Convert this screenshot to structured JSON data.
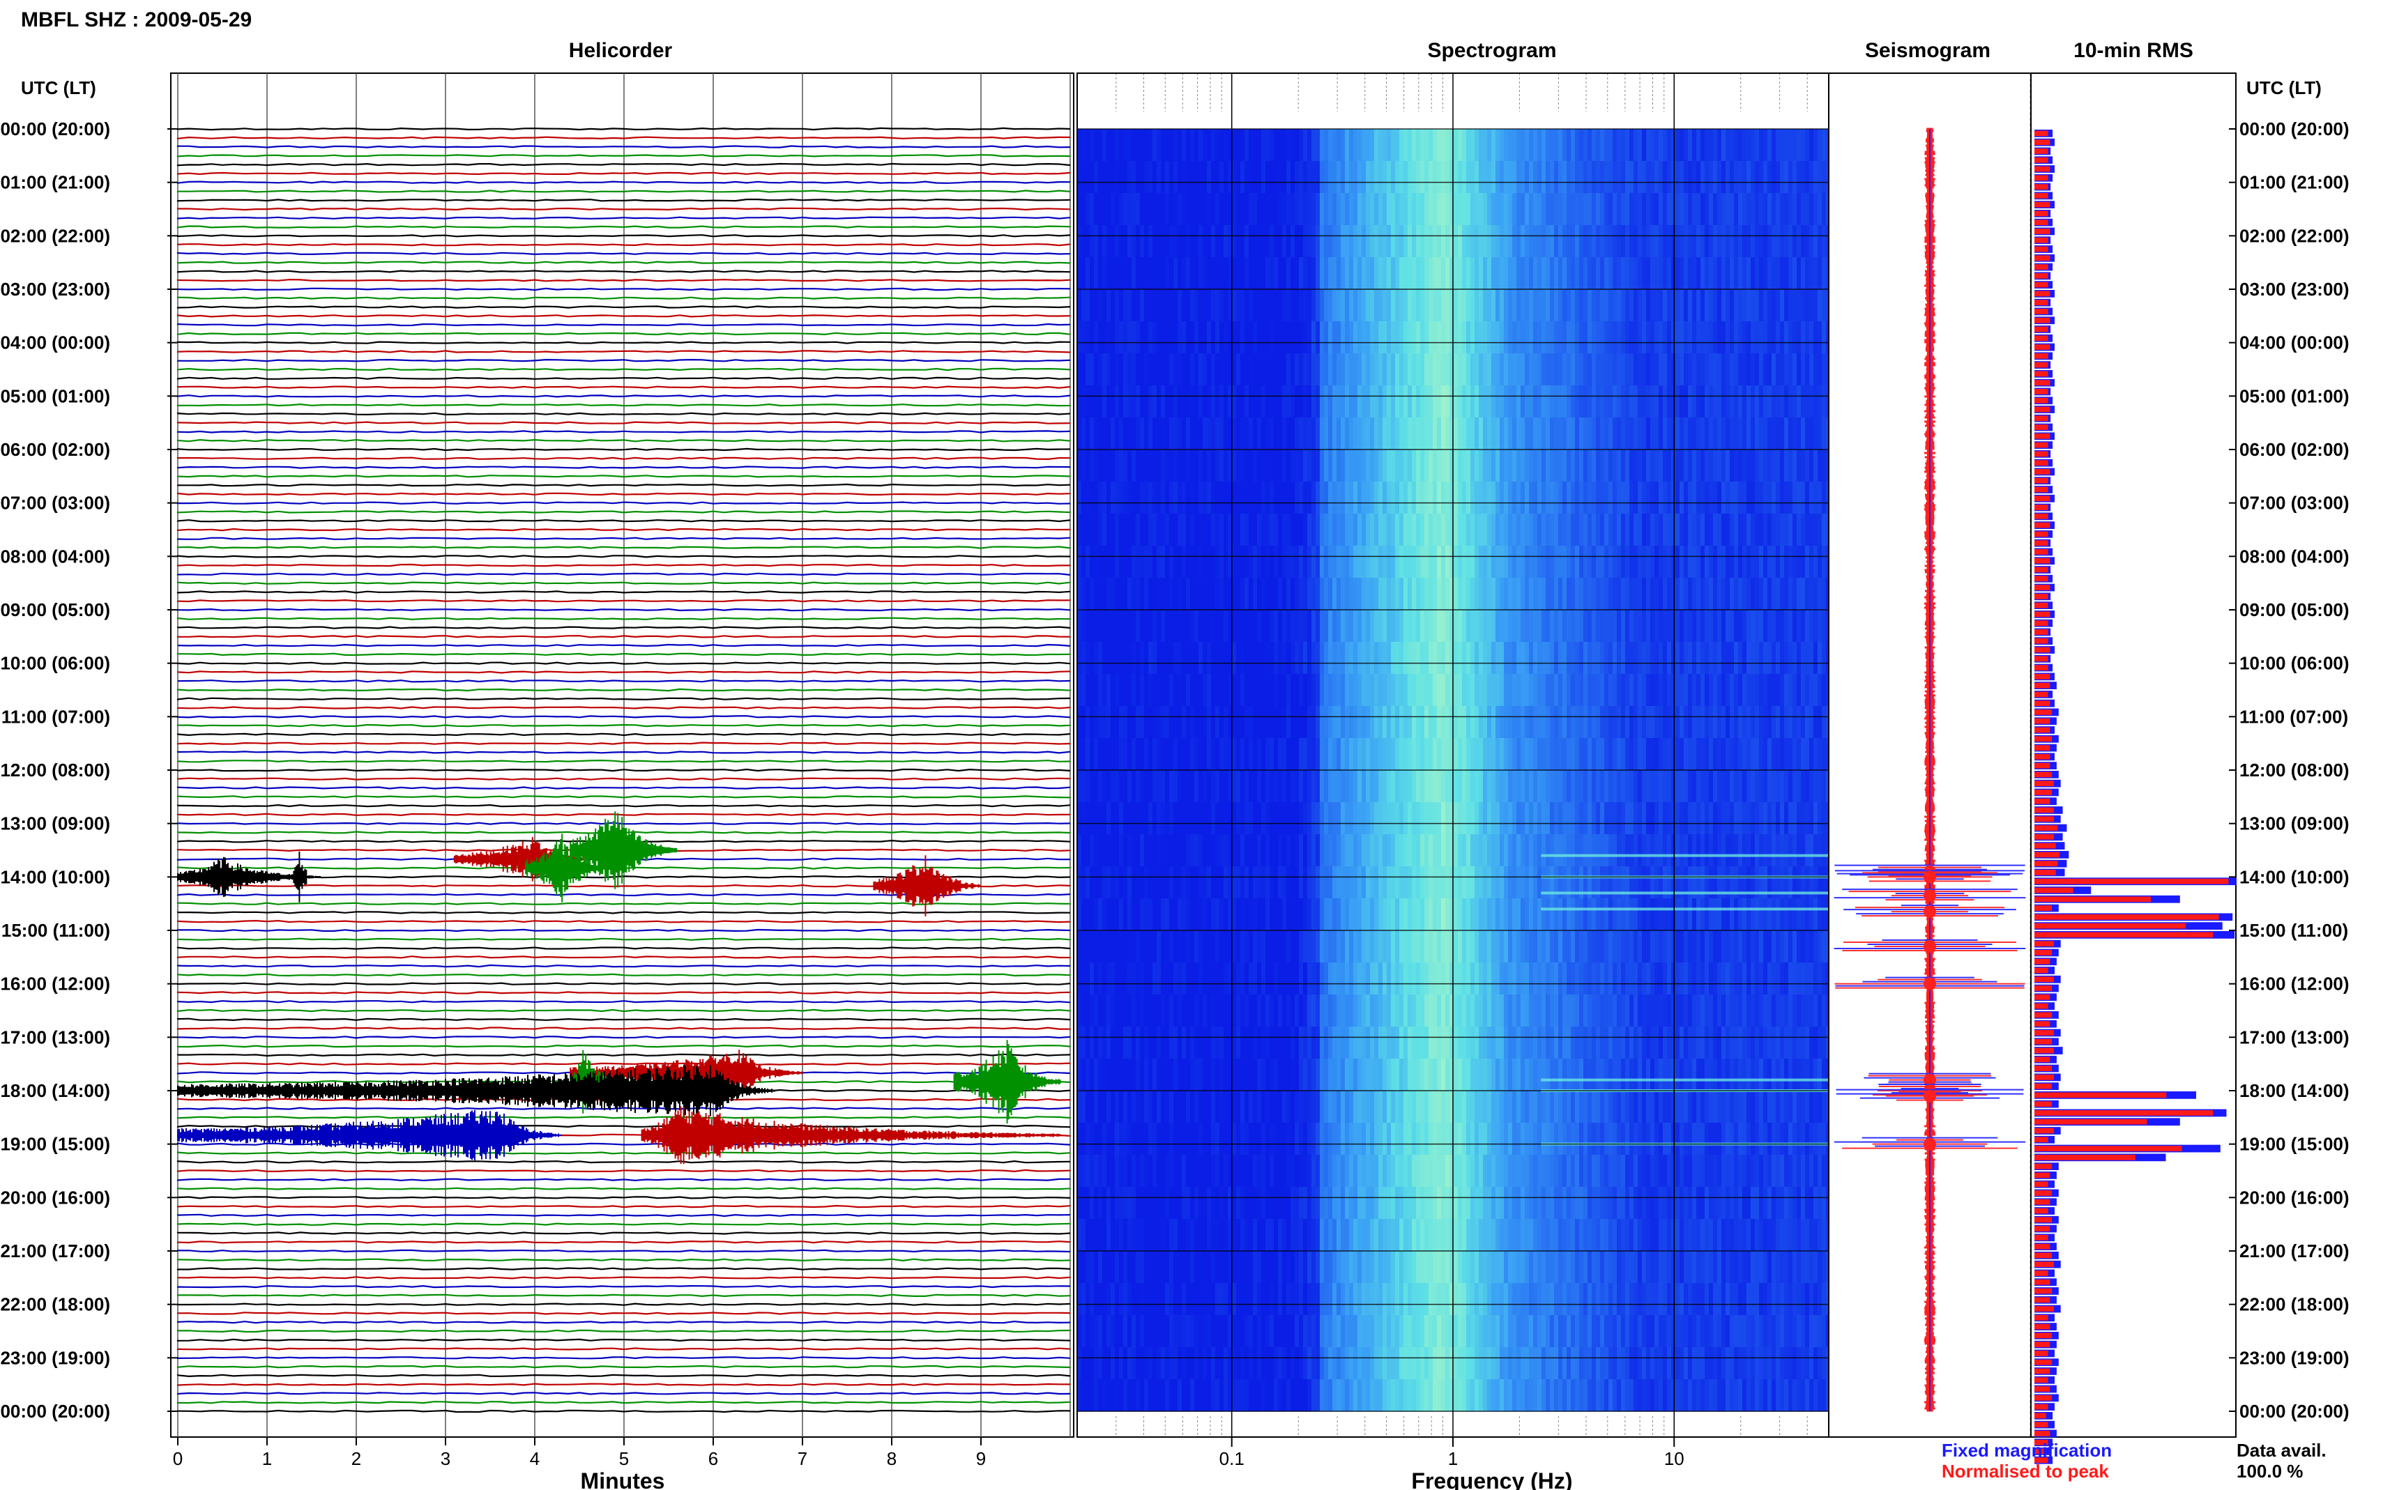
{
  "header": {
    "station_title": "MBFL SHZ : 2009-05-29"
  },
  "panels": {
    "helicorder_title": "Helicorder",
    "spectrogram_title": "Spectrogram",
    "seismogram_title": "Seismogram",
    "rms_title": "10-min RMS"
  },
  "axis": {
    "time_header_left": "UTC (LT)",
    "time_header_right": "UTC (LT)",
    "helicorder_xlabel": "Minutes",
    "spectrogram_xlabel": "Frequency (Hz)"
  },
  "legend": {
    "fixed_label": "Fixed magnification",
    "normalised_label": "Normalised to peak",
    "fixed_color": "#1a1aff",
    "normalised_color": "#ff1a1a"
  },
  "availability": {
    "label": "Data avail.",
    "value": "100.0 %"
  },
  "chart_data": [
    {
      "type": "line",
      "name": "helicorder",
      "x_range_minutes": [
        0,
        10
      ],
      "x_ticks": [
        "0",
        "1",
        "2",
        "3",
        "4",
        "5",
        "6",
        "7",
        "8",
        "9"
      ],
      "time_labels": [
        "00:00 (20:00)",
        "01:00 (21:00)",
        "02:00 (22:00)",
        "03:00 (23:00)",
        "04:00 (00:00)",
        "05:00 (01:00)",
        "06:00 (02:00)",
        "07:00 (03:00)",
        "08:00 (04:00)",
        "09:00 (05:00)",
        "10:00 (06:00)",
        "11:00 (07:00)",
        "12:00 (08:00)",
        "13:00 (09:00)",
        "14:00 (10:00)",
        "15:00 (11:00)",
        "16:00 (12:00)",
        "17:00 (13:00)",
        "18:00 (14:00)",
        "19:00 (15:00)",
        "20:00 (16:00)",
        "21:00 (17:00)",
        "22:00 (18:00)",
        "23:00 (19:00)",
        "00:00 (20:00)"
      ],
      "trace_colors": [
        "#000000",
        "#c00000",
        "#0000c0",
        "#009000"
      ],
      "traces_per_hour": 6,
      "events": [
        {
          "row": 84,
          "start_min": 0.0,
          "peak_min": 0.5,
          "end_min": 1.6,
          "amp": 0.9,
          "color": "#000000"
        },
        {
          "row": 84,
          "start_min": 1.3,
          "peak_min": 1.35,
          "end_min": 1.45,
          "amp": 1.4,
          "color": "#000000"
        },
        {
          "row": 82,
          "start_min": 3.1,
          "peak_min": 4.0,
          "end_min": 4.6,
          "amp": 1.0,
          "color": "#c00000"
        },
        {
          "row": 81,
          "start_min": 4.4,
          "peak_min": 4.9,
          "end_min": 5.6,
          "amp": 2.0,
          "color": "#009000"
        },
        {
          "row": 83,
          "start_min": 3.9,
          "peak_min": 4.3,
          "end_min": 4.9,
          "amp": 1.5,
          "color": "#009000"
        },
        {
          "row": 85,
          "start_min": 7.8,
          "peak_min": 8.4,
          "end_min": 9.0,
          "amp": 1.4,
          "color": "#c00000"
        },
        {
          "row": 106,
          "start_min": 4.4,
          "peak_min": 6.3,
          "end_min": 7.0,
          "amp": 1.0,
          "color": "#c00000"
        },
        {
          "row": 107,
          "start_min": 4.4,
          "peak_min": 4.55,
          "end_min": 5.0,
          "amp": 1.5,
          "color": "#009000"
        },
        {
          "row": 107,
          "start_min": 8.7,
          "peak_min": 9.3,
          "end_min": 9.9,
          "amp": 1.8,
          "color": "#009000"
        },
        {
          "row": 108,
          "start_min": 0.0,
          "peak_min": 6.0,
          "end_min": 6.7,
          "amp": 1.2,
          "color": "#000000"
        },
        {
          "row": 113,
          "start_min": 0.0,
          "peak_min": 3.6,
          "end_min": 4.3,
          "amp": 1.2,
          "color": "#0000c0"
        },
        {
          "row": 113,
          "start_min": 5.2,
          "peak_min": 5.6,
          "end_min": 9.9,
          "amp": 1.3,
          "color": "#c00000"
        }
      ]
    },
    {
      "type": "heatmap",
      "name": "spectrogram",
      "x_scale": "log",
      "x_range_hz": [
        0.02,
        50
      ],
      "x_ticks": [
        "0.1",
        "1",
        "10"
      ],
      "x_tick_values": [
        0.1,
        1,
        10
      ],
      "colormap": [
        "#0a1ee6",
        "#1f5cf0",
        "#3aa0f5",
        "#5ee0e6",
        "#a8f5c8"
      ],
      "dominant_band_hz": [
        0.25,
        1.8
      ],
      "peak_hz": 0.9,
      "bright_streaks_hours": [
        13.6,
        14.0,
        14.3,
        14.6,
        17.8,
        18.0,
        19.0
      ]
    },
    {
      "type": "line",
      "name": "seismogram",
      "bursts_hours": [
        13.9,
        14.0,
        14.35,
        14.65,
        15.3,
        16.0,
        17.8,
        18.0,
        18.1,
        19.0
      ]
    },
    {
      "type": "bar",
      "name": "10-min RMS",
      "series": [
        {
          "name": "Fixed magnification"
        },
        {
          "name": "Normalised to peak"
        }
      ],
      "bins_per_hour": 6,
      "baseline_values": [
        0.09,
        0.1,
        0.08,
        0.09,
        0.1,
        0.09,
        0.08,
        0.09,
        0.1,
        0.08,
        0.09,
        0.1,
        0.08,
        0.09,
        0.1,
        0.09,
        0.08,
        0.09,
        0.1,
        0.08,
        0.09,
        0.1,
        0.08,
        0.09,
        0.1,
        0.09,
        0.08,
        0.09,
        0.1,
        0.08,
        0.09,
        0.1,
        0.08,
        0.09,
        0.1,
        0.09,
        0.08,
        0.09,
        0.1,
        0.08,
        0.09,
        0.1,
        0.08,
        0.09,
        0.1,
        0.09,
        0.08,
        0.09,
        0.1,
        0.08,
        0.09,
        0.1,
        0.08,
        0.09,
        0.1,
        0.09,
        0.08,
        0.09,
        0.1,
        0.08,
        0.09,
        0.1,
        0.11,
        0.09,
        0.1,
        0.12,
        0.11,
        0.1,
        0.12,
        0.11,
        0.1,
        0.11,
        0.12,
        0.13,
        0.12,
        0.11,
        0.14,
        0.13,
        0.16,
        0.14,
        0.15,
        0.17,
        0.16,
        0.15,
        1.0,
        0.28,
        0.72,
        0.12,
        0.98,
        0.93,
        0.99,
        0.13,
        0.12,
        0.11,
        0.1,
        0.13,
        0.12,
        0.11,
        0.1,
        0.12,
        0.11,
        0.13,
        0.12,
        0.14,
        0.11,
        0.12,
        0.13,
        0.12,
        0.8,
        0.12,
        0.95,
        0.72,
        0.13,
        0.1,
        0.92,
        0.65,
        0.12,
        0.11,
        0.1,
        0.12,
        0.11,
        0.1,
        0.12,
        0.11,
        0.1,
        0.11,
        0.12,
        0.13,
        0.1,
        0.11,
        0.12,
        0.11,
        0.13,
        0.1,
        0.11,
        0.12,
        0.11,
        0.1,
        0.12,
        0.11,
        0.1,
        0.11,
        0.12,
        0.1,
        0.09,
        0.1,
        0.11,
        0.09,
        0.08,
        0.09
      ],
      "normalised_values": [
        0.07,
        0.08,
        0.07,
        0.07,
        0.08,
        0.07,
        0.07,
        0.07,
        0.08,
        0.07,
        0.07,
        0.08,
        0.07,
        0.07,
        0.08,
        0.07,
        0.07,
        0.07,
        0.08,
        0.07,
        0.07,
        0.08,
        0.07,
        0.07,
        0.08,
        0.07,
        0.07,
        0.07,
        0.08,
        0.07,
        0.07,
        0.08,
        0.07,
        0.07,
        0.08,
        0.07,
        0.07,
        0.07,
        0.08,
        0.07,
        0.07,
        0.08,
        0.07,
        0.07,
        0.08,
        0.07,
        0.07,
        0.07,
        0.08,
        0.07,
        0.07,
        0.08,
        0.07,
        0.07,
        0.08,
        0.07,
        0.07,
        0.07,
        0.08,
        0.07,
        0.07,
        0.08,
        0.08,
        0.07,
        0.08,
        0.09,
        0.08,
        0.08,
        0.09,
        0.08,
        0.08,
        0.08,
        0.09,
        0.1,
        0.09,
        0.08,
        0.1,
        0.1,
        0.12,
        0.1,
        0.11,
        0.13,
        0.12,
        0.11,
        1.0,
        0.2,
        0.6,
        0.09,
        0.95,
        0.78,
        0.92,
        0.1,
        0.09,
        0.08,
        0.07,
        0.1,
        0.09,
        0.08,
        0.07,
        0.09,
        0.08,
        0.1,
        0.09,
        0.1,
        0.08,
        0.09,
        0.1,
        0.09,
        0.68,
        0.09,
        0.92,
        0.58,
        0.1,
        0.07,
        0.76,
        0.52,
        0.09,
        0.08,
        0.07,
        0.09,
        0.08,
        0.07,
        0.09,
        0.08,
        0.07,
        0.08,
        0.09,
        0.1,
        0.07,
        0.08,
        0.09,
        0.08,
        0.1,
        0.07,
        0.08,
        0.09,
        0.08,
        0.07,
        0.09,
        0.08,
        0.07,
        0.08,
        0.09,
        0.07,
        0.06,
        0.07,
        0.08,
        0.07,
        0.06,
        0.07
      ]
    }
  ]
}
